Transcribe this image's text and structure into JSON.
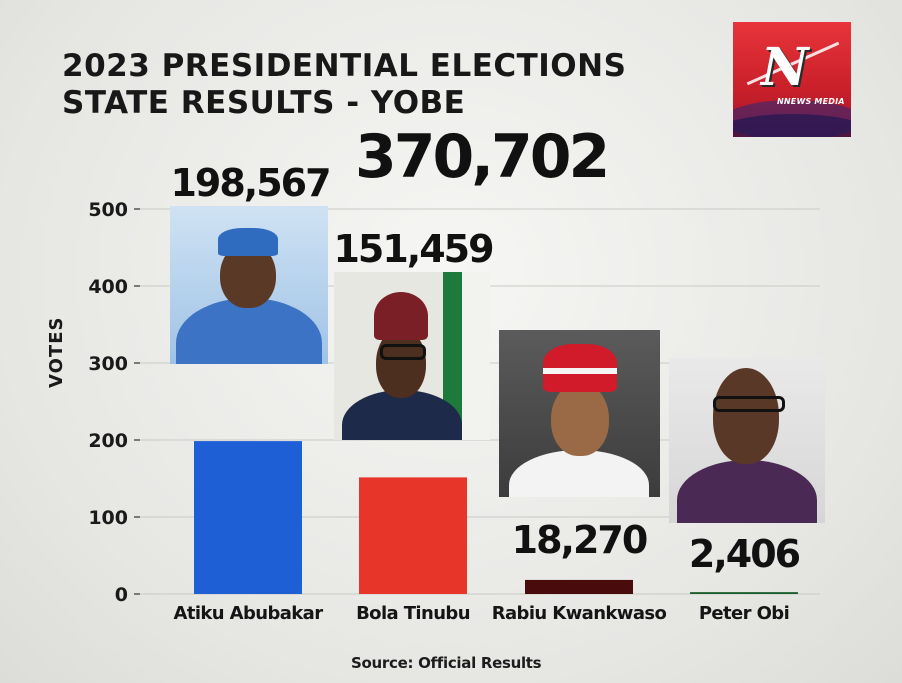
{
  "title": {
    "line1": "2023 PRESIDENTIAL ELECTIONS",
    "line2": "STATE RESULTS - YOBE"
  },
  "total_votes": "370,702",
  "logo": {
    "mark": "N",
    "brand": "NNEWS MEDIA",
    "colors": {
      "bg": "#d32630",
      "wave": "#2a2a80"
    }
  },
  "source": "Source: Official Results",
  "chart_data": {
    "type": "bar",
    "ylabel": "VOTES",
    "xlabel": "",
    "ylim": [
      0,
      500
    ],
    "yticks": [
      0,
      100,
      200,
      300,
      400,
      500
    ],
    "grid": true,
    "categories": [
      "Atiku Abubakar",
      "Bola Tinubu",
      "Rabiu Kwankwaso",
      "Peter Obi"
    ],
    "values": [
      198567,
      151459,
      18270,
      2406
    ],
    "value_labels": [
      "198,567",
      "151,459",
      "18,270",
      "2,406"
    ],
    "colors": [
      "#1f5fd6",
      "#e8352a",
      "#4a0b0c",
      "#1a5c2a"
    ],
    "portraits": [
      "candidate-atiku-photo",
      "candidate-tinubu-photo",
      "candidate-kwankwaso-photo",
      "candidate-obi-photo"
    ]
  }
}
